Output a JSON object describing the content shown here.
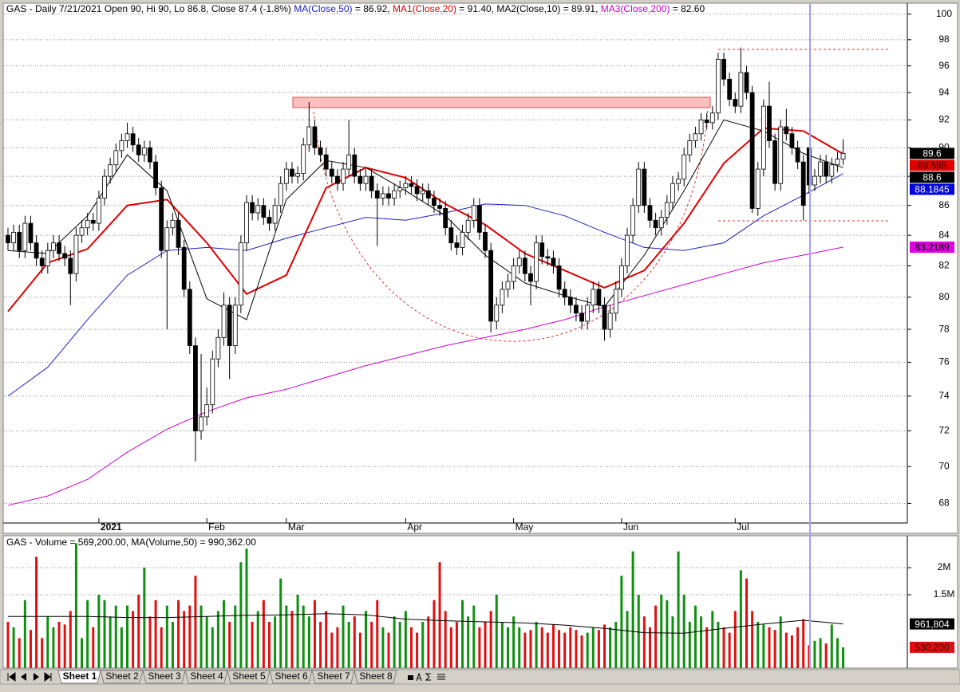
{
  "chart_data": [
    {
      "type": "candlestick",
      "title_parts": [
        {
          "text": "GAS - Daily 7/21/2021 Open 90, Hi 90, Lo 86.8, Close 87.4 (-1.8%) ",
          "color": "#000000"
        },
        {
          "text": "MA(Close,50)",
          "color": "#2020c0"
        },
        {
          "text": " = 86.92, ",
          "color": "#000000"
        },
        {
          "text": "MA1(Close,20)",
          "color": "#e00000"
        },
        {
          "text": " = 91.40, ",
          "color": "#000000"
        },
        {
          "text": "MA2(Close,10) = 89.91, ",
          "color": "#000000"
        },
        {
          "text": "MA3(Close,200)",
          "color": "#d000d0"
        },
        {
          "text": " = 82.60",
          "color": "#000000"
        }
      ],
      "log": true,
      "grid": true,
      "xlim": [
        -0.7,
        158.3
      ],
      "xticks": [
        {
          "value": 16,
          "label": "2021",
          "bold": true
        },
        {
          "value": 35,
          "label": "Feb"
        },
        {
          "value": 49,
          "label": "Mar"
        },
        {
          "value": 70,
          "label": "Apr"
        },
        {
          "value": 89,
          "label": "May"
        },
        {
          "value": 108,
          "label": "Jun"
        },
        {
          "value": 128,
          "label": "Jul"
        }
      ],
      "ylim": [
        67,
        100.8
      ],
      "yticks": [
        68,
        70,
        72,
        74,
        76,
        78,
        80,
        82,
        84,
        86,
        88,
        90,
        92,
        94,
        96,
        98,
        100
      ],
      "up_fill": "#ffffff",
      "down_fill": "#000000",
      "open": [
        84.0,
        83.5,
        84.2,
        83.0,
        84.8,
        83.5,
        82.5,
        82.0,
        83.0,
        83.5,
        82.8,
        82.5,
        81.5,
        84.0,
        84.5,
        85.0,
        84.8,
        86.5,
        88.0,
        88.8,
        89.8,
        90.5,
        91.0,
        90.2,
        89.5,
        90.0,
        89.0,
        87.2,
        83.0,
        84.5,
        85.0,
        83.2,
        80.5,
        77.0,
        72.0,
        72.8,
        73.5,
        76.2,
        77.5,
        79.5,
        77.0,
        79.5,
        83.5,
        86.2,
        85.5,
        86.0,
        85.2,
        84.8,
        86.0,
        87.5,
        88.5,
        88.0,
        88.2,
        90.2,
        91.5,
        90.0,
        89.5,
        88.5,
        88.0,
        87.5,
        88.5,
        89.5,
        88.0,
        87.5,
        88.0,
        87.0,
        86.5,
        86.8,
        86.5,
        87.0,
        87.2,
        87.5,
        87.3,
        86.8,
        87.0,
        86.5,
        86.0,
        85.8,
        84.5,
        83.5,
        83.2,
        84.2,
        85.0,
        86.0,
        84.2,
        83.0,
        78.5,
        79.5,
        80.5,
        81.0,
        82.0,
        82.5,
        81.5,
        81.0,
        83.5,
        82.6,
        82.5,
        82.0,
        80.5,
        80.0,
        79.5,
        79.0,
        78.5,
        79.5,
        80.5,
        79.5,
        78.0,
        79.0,
        80.5,
        82.0,
        84.0,
        86.0,
        88.5,
        86.0,
        85.0,
        84.5,
        85.2,
        86.2,
        87.5,
        87.8,
        89.5,
        90.5,
        91.0,
        92.0,
        91.8,
        92.5,
        96.5,
        95.0,
        93.5,
        93.0,
        95.5,
        94.0,
        85.8,
        88.5,
        93.0,
        90.5,
        87.5,
        91.5,
        91.0,
        90.0,
        89.0,
        90.0,
        87.4,
        88.0,
        89.0,
        88.0,
        88.8,
        89.2
      ],
      "high": [
        84.5,
        84.7,
        84.7,
        85.3,
        85.3,
        84.0,
        83.0,
        83.5,
        84.0,
        84.0,
        83.3,
        83.0,
        84.5,
        85.0,
        85.5,
        85.5,
        87.0,
        88.5,
        89.3,
        90.3,
        91.0,
        91.8,
        91.5,
        90.7,
        90.5,
        90.5,
        89.5,
        87.7,
        85.0,
        85.5,
        85.5,
        83.7,
        81.0,
        77.5,
        76.5,
        74.5,
        76.7,
        78.0,
        80.3,
        80.0,
        80.0,
        84.0,
        86.7,
        86.7,
        86.5,
        86.5,
        85.7,
        86.5,
        88.0,
        89.0,
        89.0,
        88.7,
        90.7,
        93.3,
        92.0,
        90.5,
        90.0,
        89.0,
        88.5,
        89.0,
        92.0,
        90.0,
        88.5,
        88.5,
        88.5,
        87.5,
        87.3,
        87.3,
        87.5,
        87.7,
        88.0,
        88.0,
        87.8,
        87.5,
        87.5,
        87.0,
        86.5,
        86.3,
        85.0,
        84.0,
        84.7,
        85.5,
        86.5,
        86.5,
        84.7,
        83.5,
        80.0,
        81.0,
        81.5,
        82.5,
        83.0,
        83.0,
        82.0,
        84.0,
        84.0,
        83.1,
        83.0,
        82.5,
        81.0,
        80.5,
        80.0,
        79.5,
        80.0,
        81.0,
        81.0,
        80.0,
        79.5,
        81.0,
        82.5,
        84.5,
        86.5,
        89.0,
        89.0,
        86.5,
        85.5,
        85.7,
        86.7,
        88.0,
        88.3,
        90.0,
        91.0,
        91.5,
        92.5,
        92.5,
        93.0,
        97.0,
        97.0,
        95.5,
        94.0,
        97.4,
        96.0,
        94.5,
        89.0,
        93.5,
        94.8,
        91.0,
        92.0,
        92.8,
        91.5,
        90.5,
        89.5,
        90.0,
        88.5,
        89.5,
        89.5,
        89.3,
        89.7,
        90.6
      ],
      "low": [
        83.0,
        83.0,
        82.5,
        82.5,
        83.0,
        82.0,
        81.5,
        81.5,
        82.5,
        82.3,
        82.0,
        79.5,
        81.0,
        83.5,
        84.0,
        84.3,
        84.3,
        86.0,
        87.5,
        88.3,
        89.3,
        90.0,
        89.7,
        89.0,
        89.0,
        88.5,
        86.7,
        82.5,
        78.0,
        84.0,
        82.7,
        80.0,
        76.5,
        70.3,
        71.5,
        72.3,
        73.0,
        75.7,
        77.0,
        75.0,
        76.5,
        79.0,
        83.0,
        85.0,
        85.0,
        84.7,
        84.3,
        84.3,
        85.5,
        87.0,
        87.5,
        87.5,
        87.7,
        89.7,
        89.5,
        89.0,
        88.0,
        87.5,
        87.0,
        87.0,
        88.0,
        87.5,
        87.0,
        87.0,
        86.5,
        83.3,
        86.0,
        86.0,
        86.0,
        86.5,
        86.7,
        86.8,
        86.3,
        86.3,
        86.0,
        85.5,
        85.3,
        84.0,
        83.0,
        82.7,
        82.7,
        83.7,
        84.5,
        83.7,
        82.5,
        77.8,
        78.0,
        79.0,
        80.0,
        80.5,
        81.5,
        81.0,
        79.5,
        80.5,
        82.1,
        82.0,
        81.5,
        80.0,
        79.5,
        79.0,
        78.5,
        78.0,
        78.0,
        79.0,
        79.0,
        77.3,
        77.5,
        78.5,
        80.0,
        81.5,
        83.5,
        85.5,
        85.5,
        84.5,
        84.0,
        84.0,
        84.7,
        85.7,
        87.0,
        87.3,
        89.0,
        90.0,
        90.5,
        91.3,
        91.3,
        92.0,
        94.5,
        93.0,
        92.5,
        92.5,
        93.5,
        85.5,
        85.3,
        88.0,
        90.0,
        87.0,
        87.0,
        90.5,
        89.5,
        88.5,
        85.0,
        86.8,
        87.0,
        87.5,
        87.5,
        87.5,
        88.3,
        88.8
      ],
      "close": [
        83.5,
        84.2,
        83.0,
        84.8,
        83.5,
        82.5,
        82.0,
        83.0,
        83.5,
        82.8,
        82.5,
        81.5,
        84.0,
        84.5,
        85.0,
        84.8,
        86.5,
        88.0,
        88.8,
        89.8,
        90.5,
        91.0,
        90.2,
        89.5,
        90.0,
        89.0,
        87.2,
        83.0,
        84.5,
        85.0,
        83.2,
        80.5,
        77.0,
        72.0,
        72.8,
        73.5,
        76.2,
        77.5,
        79.5,
        77.0,
        79.5,
        83.5,
        86.2,
        85.5,
        86.0,
        85.2,
        84.8,
        86.0,
        87.5,
        88.5,
        88.0,
        88.2,
        90.2,
        91.5,
        90.0,
        89.5,
        88.5,
        88.0,
        87.5,
        88.5,
        89.5,
        88.0,
        87.5,
        88.0,
        87.0,
        86.5,
        86.8,
        86.5,
        87.0,
        87.2,
        87.5,
        87.3,
        86.8,
        87.0,
        86.5,
        86.0,
        85.8,
        84.5,
        83.5,
        83.2,
        84.2,
        85.0,
        86.0,
        84.2,
        83.0,
        78.5,
        79.5,
        80.5,
        81.0,
        82.0,
        82.5,
        81.5,
        81.0,
        83.5,
        82.6,
        82.5,
        82.0,
        80.5,
        80.0,
        79.5,
        79.0,
        78.5,
        79.5,
        80.5,
        79.5,
        78.0,
        79.0,
        80.5,
        82.0,
        84.0,
        86.0,
        88.5,
        86.0,
        85.0,
        84.5,
        85.2,
        86.2,
        87.5,
        87.8,
        89.5,
        90.5,
        91.0,
        92.0,
        91.8,
        92.5,
        96.5,
        95.0,
        93.5,
        93.0,
        95.5,
        94.0,
        85.8,
        88.5,
        93.0,
        90.5,
        87.5,
        91.5,
        91.0,
        90.0,
        89.0,
        86.0,
        87.4,
        88.0,
        89.0,
        88.0,
        88.8,
        89.2,
        89.6
      ],
      "series": [
        {
          "color": "#d000d0",
          "width": 1,
          "x": [
            0,
            7,
            14,
            21,
            28,
            35,
            42,
            49,
            56,
            63,
            70,
            77,
            84,
            91,
            98,
            105,
            112,
            119,
            126,
            133,
            140,
            147
          ],
          "values": [
            67.9,
            68.4,
            69.3,
            70.8,
            72.1,
            73.1,
            73.9,
            74.4,
            75.1,
            75.8,
            76.4,
            77.0,
            77.5,
            78.0,
            78.6,
            79.4,
            80.1,
            80.8,
            81.5,
            82.2,
            82.7,
            83.2189
          ]
        },
        {
          "color": "#2020c0",
          "width": 1,
          "x": [
            0,
            7,
            14,
            21,
            28,
            35,
            42,
            49,
            56,
            63,
            70,
            77,
            84,
            91,
            98,
            105,
            112,
            119,
            126,
            133,
            140,
            147
          ],
          "values": [
            74.0,
            75.7,
            78.6,
            81.4,
            83.0,
            83.2,
            83.0,
            83.8,
            84.5,
            85.2,
            85.0,
            85.5,
            86.1,
            86.0,
            85.3,
            84.2,
            83.2,
            83.0,
            83.5,
            85.3,
            86.7,
            88.1845
          ]
        },
        {
          "color": "#e00000",
          "width": 2,
          "x": [
            0,
            7,
            14,
            21,
            28,
            35,
            42,
            49,
            56,
            63,
            70,
            77,
            84,
            91,
            98,
            105,
            112,
            119,
            126,
            133,
            140,
            147
          ],
          "values": [
            79.1,
            82.2,
            83.1,
            86.0,
            86.4,
            83.5,
            80.2,
            81.4,
            87.2,
            88.6,
            87.9,
            86.1,
            84.7,
            82.8,
            81.7,
            80.6,
            81.7,
            84.8,
            88.9,
            91.4,
            91.2,
            89.565
          ]
        },
        {
          "color": "#000000",
          "width": 1,
          "x": [
            0,
            7,
            14,
            21,
            28,
            35,
            42,
            49,
            56,
            63,
            70,
            77,
            84,
            91,
            98,
            105,
            112,
            119,
            126,
            133,
            140,
            147
          ],
          "values": [
            83.0,
            82.8,
            85.3,
            89.5,
            87.0,
            79.9,
            78.6,
            86.4,
            89.1,
            88.6,
            87.0,
            85.3,
            82.7,
            80.9,
            80.1,
            79.4,
            82.7,
            87.0,
            92.0,
            91.2,
            89.6,
            88.6
          ]
        }
      ],
      "last_values": [
        {
          "value": 89.6,
          "color": "#000000",
          "text_color": "#ffffff"
        },
        {
          "value": 89.565,
          "color": "#e00000",
          "text_color": "#400000"
        },
        {
          "value": 88.6,
          "color": "#000000",
          "text_color": "#ffffff"
        },
        {
          "value": 88.1845,
          "color": "#0000e0",
          "text_color": "#ffffff"
        },
        {
          "value": 83.2189,
          "color": "#e000e0",
          "text_color": "#000000"
        }
      ]
    },
    {
      "type": "bar",
      "title": "GAS - Volume = 569,200.00, MA(Volume,50) = 990,362.00",
      "ylim": [
        147000,
        2588000
      ],
      "yticks": [
        {
          "value": 2000000,
          "label": "2M"
        },
        {
          "value": 1500000,
          "label": "1.5M"
        }
      ],
      "grid": true,
      "up_color": "#109010",
      "down_color": "#e01010",
      "values": [
        1000000,
        900000,
        700000,
        1400000,
        850000,
        2200000,
        700000,
        1100000,
        900000,
        1000000,
        950000,
        1200000,
        2450000,
        700000,
        1400000,
        900000,
        1500000,
        1400000,
        1100000,
        1300000,
        900000,
        1300000,
        1200000,
        1500000,
        2000000,
        1100000,
        1400000,
        900000,
        1300000,
        1000000,
        1400000,
        1200000,
        1300000,
        1850000,
        1300000,
        1100000,
        900000,
        1200000,
        1400000,
        1000000,
        1300000,
        2100000,
        2350000,
        1000000,
        1200000,
        1400000,
        1000000,
        1100000,
        1800000,
        1300000,
        1200000,
        1500000,
        1300000,
        1100000,
        1400000,
        1000000,
        1200000,
        800000,
        900000,
        1300000,
        1000000,
        1100000,
        800000,
        1200000,
        1000000,
        1400000,
        900000,
        800000,
        1100000,
        1000000,
        1200000,
        900000,
        800000,
        1000000,
        1100000,
        1400000,
        2100000,
        1200000,
        900000,
        1000000,
        1400000,
        1100000,
        1300000,
        900000,
        1000000,
        1200000,
        1500000,
        1000000,
        900000,
        1100000,
        900000,
        800000,
        850000,
        1000000,
        900000,
        800000,
        950000,
        850000,
        800000,
        900000,
        850000,
        750000,
        800000,
        900000,
        850000,
        950000,
        900000,
        1000000,
        1850000,
        1200000,
        2300000,
        1500000,
        1100000,
        900000,
        1300000,
        1500000,
        1400000,
        1100000,
        2300000,
        1500000,
        1000000,
        1300000,
        1100000,
        900000,
        1200000,
        1000000,
        900000,
        800000,
        1200000,
        1950000,
        1800000,
        1200000,
        1000000,
        950000,
        900000,
        850000,
        1100000,
        800000,
        750000,
        900000,
        1050000,
        569200,
        650000,
        700000,
        600000,
        950000,
        700000,
        530200
      ],
      "series": [
        {
          "color": "#000000",
          "width": 1,
          "x": [
            0,
            7,
            14,
            21,
            28,
            35,
            42,
            49,
            56,
            63,
            70,
            77,
            84,
            91,
            98,
            105,
            112,
            119,
            126,
            133,
            140,
            147
          ],
          "values": [
            1100000,
            1100000,
            1100000,
            1080000,
            1080000,
            1100000,
            1120000,
            1130000,
            1150000,
            1130000,
            1050000,
            1020000,
            1000000,
            980000,
            940000,
            880000,
            800000,
            790000,
            880000,
            960000,
            1030000,
            961804
          ]
        }
      ],
      "last_values": [
        {
          "value": 961804,
          "label": "961,804",
          "color": "#000000",
          "text_color": "#ffffff"
        },
        {
          "value": 530200,
          "label": "530,200",
          "color": "#e01010",
          "text_color": "#400000"
        }
      ]
    }
  ],
  "tabs": [
    "Sheet 1",
    "Sheet 2",
    "Sheet 3",
    "Sheet 4",
    "Sheet 5",
    "Sheet 6",
    "Sheet 7",
    "Sheet 8"
  ]
}
